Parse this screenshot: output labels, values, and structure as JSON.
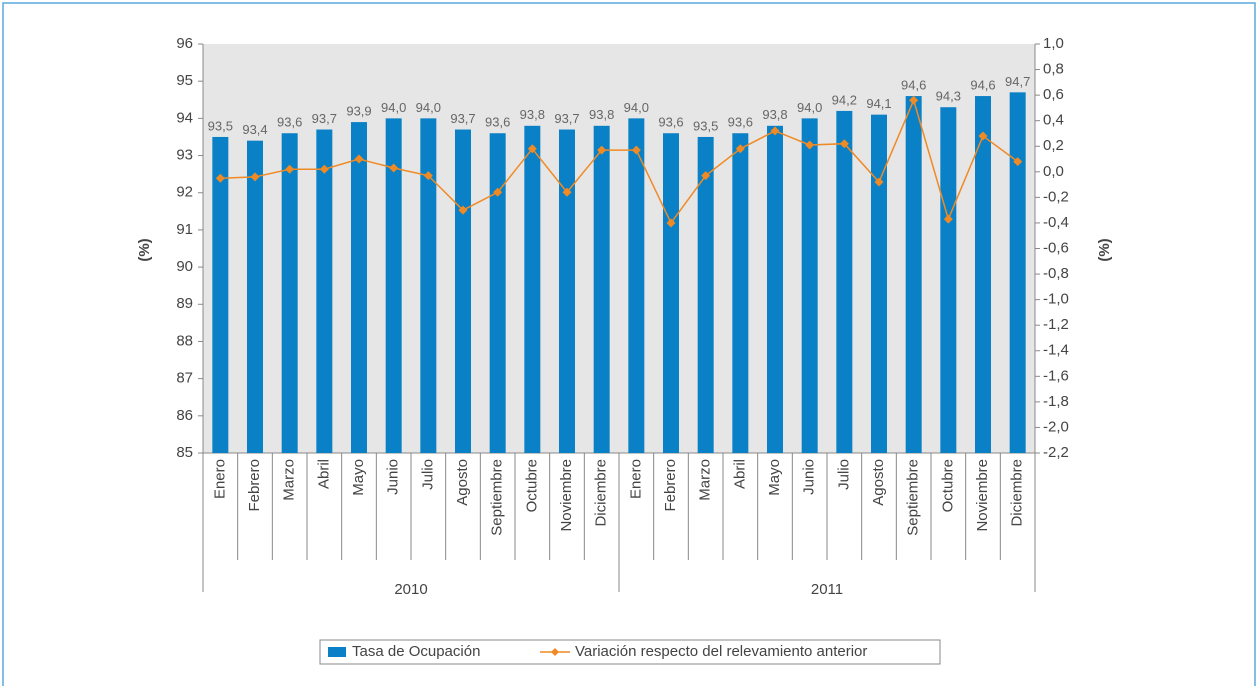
{
  "chart_data": {
    "type": "bar_line",
    "categories": [
      "Enero",
      "Febrero",
      "Marzo",
      "Abril",
      "Mayo",
      "Junio",
      "Julio",
      "Agosto",
      "Septiembre",
      "Octubre",
      "Noviembre",
      "Diciembre",
      "Enero",
      "Febrero",
      "Marzo",
      "Abril",
      "Mayo",
      "Junio",
      "Julio",
      "Agosto",
      "Septiembre",
      "Octubre",
      "Noviembre",
      "Diciembre"
    ],
    "category_groups": [
      "2010",
      "2011"
    ],
    "y_label": "(%)",
    "y2_label": "(%)",
    "ylim": [
      85,
      96
    ],
    "yticks": [
      85,
      86,
      87,
      88,
      89,
      90,
      91,
      92,
      93,
      94,
      95,
      96
    ],
    "y2lim": [
      -2.2,
      1.0
    ],
    "y2ticks": [
      {
        "value": -2.2,
        "label": "-2,2"
      },
      {
        "value": -2.0,
        "label": "-2,0"
      },
      {
        "value": -1.8,
        "label": "-1,8"
      },
      {
        "value": -1.6,
        "label": "-1,6"
      },
      {
        "value": -1.4,
        "label": "-1,4"
      },
      {
        "value": -1.2,
        "label": "-1,2"
      },
      {
        "value": -1.0,
        "label": "-1,0"
      },
      {
        "value": -0.8,
        "label": "-0,8"
      },
      {
        "value": -0.6,
        "label": "-0,6"
      },
      {
        "value": -0.4,
        "label": "-0,4"
      },
      {
        "value": -0.2,
        "label": "-0,2"
      },
      {
        "value": 0,
        "label": "0,0"
      },
      {
        "value": 0.2,
        "label": "0,2"
      },
      {
        "value": 0.4,
        "label": "0,4"
      },
      {
        "value": 0.6,
        "label": "0,6"
      },
      {
        "value": 0.8,
        "label": "0,8"
      },
      {
        "value": 1.0,
        "label": "1,0"
      }
    ],
    "legend": "bottom",
    "series": [
      {
        "name": "Tasa de Ocupación",
        "type": "bar",
        "color": "#0a80c6",
        "values": [
          93.5,
          93.4,
          93.6,
          93.7,
          93.9,
          94.0,
          94.0,
          93.7,
          93.6,
          93.8,
          93.7,
          93.8,
          94.0,
          93.6,
          93.5,
          93.6,
          93.8,
          94.0,
          94.2,
          94.1,
          94.6,
          94.3,
          94.6,
          94.7
        ],
        "value_labels": [
          "93,5",
          "93,4",
          "93,6",
          "93,7",
          "93,9",
          "94,0",
          "94,0",
          "93,7",
          "93,6",
          "93,8",
          "93,7",
          "93,8",
          "94,0",
          "93,6",
          "93,5",
          "93,6",
          "93,8",
          "94,0",
          "94,2",
          "94,1",
          "94,6",
          "94,3",
          "94,6",
          "94,7"
        ]
      },
      {
        "name": "Variación respecto del relevamiento anterior",
        "type": "line",
        "axis": "y2",
        "color": "#f08a24",
        "values": [
          -0.05,
          -0.04,
          0.02,
          0.02,
          0.1,
          0.03,
          -0.03,
          -0.3,
          -0.16,
          0.18,
          -0.16,
          0.17,
          0.17,
          -0.4,
          -0.03,
          0.18,
          0.32,
          0.21,
          0.22,
          -0.08,
          0.56,
          -0.37,
          0.28,
          0.08
        ]
      }
    ]
  }
}
